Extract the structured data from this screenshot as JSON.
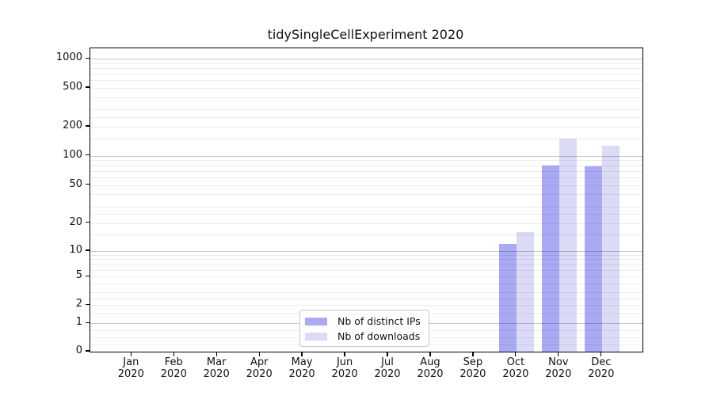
{
  "chart_data": {
    "type": "bar",
    "title": "tidySingleCellExperiment 2020",
    "x_tick_labels": [
      {
        "month": "Jan",
        "year": "2020"
      },
      {
        "month": "Feb",
        "year": "2020"
      },
      {
        "month": "Mar",
        "year": "2020"
      },
      {
        "month": "Apr",
        "year": "2020"
      },
      {
        "month": "May",
        "year": "2020"
      },
      {
        "month": "Jun",
        "year": "2020"
      },
      {
        "month": "Jul",
        "year": "2020"
      },
      {
        "month": "Aug",
        "year": "2020"
      },
      {
        "month": "Sep",
        "year": "2020"
      },
      {
        "month": "Oct",
        "year": "2020"
      },
      {
        "month": "Nov",
        "year": "2020"
      },
      {
        "month": "Dec",
        "year": "2020"
      }
    ],
    "series": [
      {
        "name": "Nb of distinct IPs",
        "color": "#a9a9f4",
        "values": [
          0,
          0,
          0,
          0,
          0,
          0,
          0,
          0,
          0,
          12,
          79,
          78
        ]
      },
      {
        "name": "Nb of downloads",
        "color": "#dbdbf8",
        "values": [
          0,
          0,
          0,
          0,
          0,
          0,
          0,
          0,
          0,
          16,
          150,
          127
        ]
      }
    ],
    "y_axis": {
      "scale": "log-like (linear 0-1, log 1-1000)",
      "tick_labels": [
        "1000",
        "500",
        "200",
        "100",
        "50",
        "20",
        "10",
        "5",
        "2",
        "1",
        "0"
      ],
      "tick_values": [
        1000,
        500,
        200,
        100,
        50,
        20,
        10,
        5,
        2,
        1,
        0
      ],
      "range": [
        0,
        1000
      ]
    },
    "legend": {
      "position": "lower center",
      "entries": [
        "Nb of distinct IPs",
        "Nb of downloads"
      ]
    },
    "grid": "horizontal, major at powers of 10 (darker) + minor (light)"
  }
}
